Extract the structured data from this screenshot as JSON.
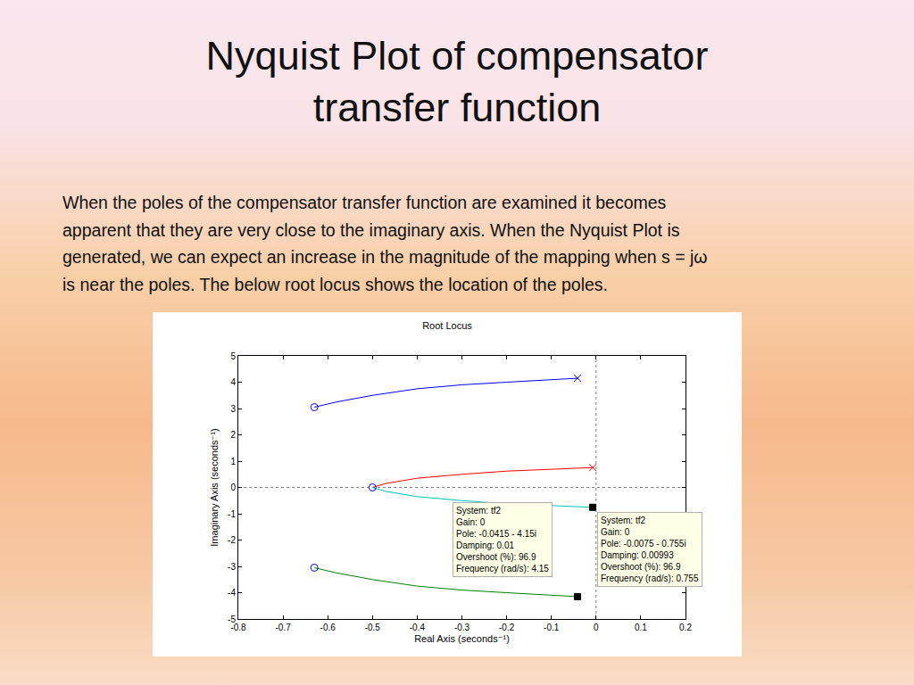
{
  "page": {
    "title": [
      "Nyquist Plot of compensator",
      "transfer function"
    ],
    "text": [
      "When the poles of the compensator transfer function are examined it becomes",
      "apparent that they are very close to the imaginary axis. When the Nyquist Plot is",
      "generated, we can expect an increase in the magnitude of the mapping when s = jω",
      "is near the poles. The below root locus shows the location of the poles."
    ]
  },
  "chart_data": {
    "type": "line",
    "title": "Root Locus",
    "x_label": "Real Axis (seconds⁻¹)",
    "y_label": "Imaginary Axis (seconds⁻¹)",
    "xlim": [
      -0.8,
      0.2
    ],
    "xticks": [
      -0.8,
      -0.7,
      -0.6,
      -0.5,
      -0.4,
      -0.3,
      -0.2,
      -0.1,
      0,
      0.1,
      0.2
    ],
    "ylim": [
      -5,
      5
    ],
    "yticks": [
      -5,
      -4,
      -3,
      -2,
      -1,
      0,
      1,
      2,
      3,
      4,
      5
    ],
    "grid": false,
    "series": [
      {
        "type": "line",
        "color": "#0000ff",
        "line_style": "solid",
        "x": [
          -0.0415,
          -0.1,
          -0.2,
          -0.3,
          -0.4,
          -0.5,
          -0.58,
          -0.63
        ],
        "y": [
          4.15,
          4.1,
          4.0,
          3.9,
          3.75,
          3.5,
          3.25,
          3.05
        ]
      },
      {
        "type": "line",
        "color": "#ff0000",
        "line_style": "solid",
        "x": [
          -0.0075,
          -0.1,
          -0.2,
          -0.3,
          -0.4,
          -0.47,
          -0.5
        ],
        "y": [
          0.755,
          0.7,
          0.62,
          0.5,
          0.35,
          0.15,
          0
        ]
      },
      {
        "type": "line",
        "color": "#00bfbf",
        "line_style": "solid",
        "x": [
          -0.0075,
          -0.1,
          -0.2,
          -0.3,
          -0.4,
          -0.47,
          -0.5
        ],
        "y": [
          -0.755,
          -0.7,
          -0.62,
          -0.5,
          -0.35,
          -0.15,
          0
        ]
      },
      {
        "type": "line",
        "color": "#008000",
        "line_style": "solid",
        "x": [
          -0.0415,
          -0.1,
          -0.2,
          -0.3,
          -0.4,
          -0.5,
          -0.58,
          -0.63
        ],
        "y": [
          -4.15,
          -4.1,
          -4.0,
          -3.9,
          -3.75,
          -3.5,
          -3.25,
          -3.05
        ]
      },
      {
        "type": "scatter",
        "marker": "x",
        "colors": [
          "#0000ff",
          "#ff0000"
        ],
        "x": [
          -0.0415,
          -0.0075
        ],
        "y": [
          4.15,
          0.755
        ]
      },
      {
        "type": "scatter",
        "marker": "circle",
        "color": "#0000ff",
        "x": [
          -0.63,
          -0.5,
          -0.63
        ],
        "y": [
          3.05,
          0,
          -3.05
        ]
      },
      {
        "type": "scatter",
        "marker": "square",
        "color": "#000000",
        "x": [
          -0.0415,
          -0.0075
        ],
        "y": [
          -4.15,
          -0.755
        ]
      }
    ],
    "annotations": [
      {
        "x": -0.0415,
        "y": -4.15,
        "lines": [
          "System: tf2",
          "Gain: 0",
          "Pole: -0.0415 - 4.15i",
          "Damping: 0.01",
          "Overshoot (%): 96.9",
          "Frequency (rad/s): 4.15"
        ]
      },
      {
        "x": -0.0075,
        "y": -0.755,
        "lines": [
          "System: tf2",
          "Gain: 0",
          "Pole: -0.0075 - 0.755i",
          "Damping: 0.00993",
          "Overshoot (%): 96.9",
          "Frequency (rad/s): 0.755"
        ]
      }
    ]
  }
}
